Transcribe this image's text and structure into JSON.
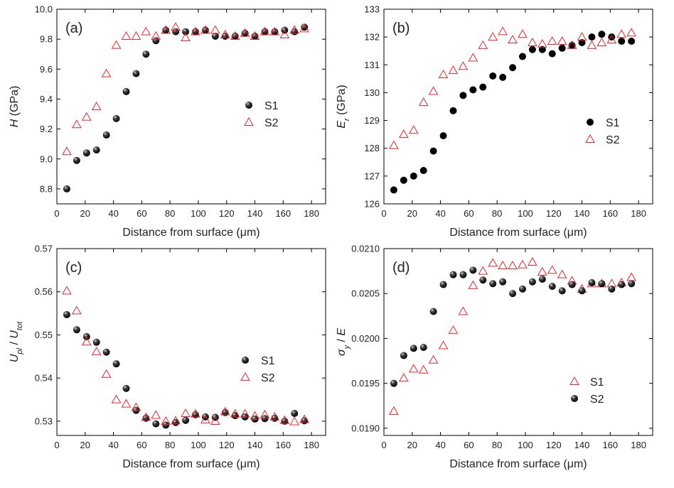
{
  "chart_data": [
    {
      "type": "scatter",
      "label": "(a)",
      "xlabel": "Distance from surface (μm)",
      "ylabel": [
        {
          "text": "H",
          "italic": true
        },
        {
          "text": " (GPa)"
        }
      ],
      "x": [
        7,
        14,
        21,
        28,
        35,
        42,
        49,
        56,
        63,
        70,
        77,
        84,
        91,
        98,
        105,
        112,
        119,
        126,
        133,
        140,
        147,
        154,
        161,
        168,
        175
      ],
      "xlim": [
        0,
        190
      ],
      "xticks": [
        0,
        20,
        40,
        60,
        80,
        100,
        120,
        140,
        160,
        180
      ],
      "ylim": [
        8.7,
        10.0
      ],
      "yticks": [
        8.8,
        {
          "value": 9,
          "label": "9.0"
        },
        9.2,
        9.4,
        9.6,
        9.8,
        {
          "value": 10,
          "label": "10.0"
        }
      ],
      "series": [
        {
          "name": "S1",
          "marker": "sphere",
          "color": "#000000",
          "values": [
            8.8,
            8.99,
            9.04,
            9.06,
            9.16,
            9.27,
            9.45,
            9.57,
            9.7,
            9.79,
            9.86,
            9.85,
            9.85,
            9.85,
            9.86,
            9.82,
            9.82,
            9.82,
            9.84,
            9.82,
            9.85,
            9.85,
            9.86,
            9.85,
            9.88
          ]
        },
        {
          "name": "S2",
          "marker": "triangle",
          "color": "#e8262a",
          "values": [
            9.05,
            9.23,
            9.28,
            9.35,
            9.57,
            9.76,
            9.82,
            9.82,
            9.85,
            9.82,
            9.86,
            9.88,
            9.81,
            9.85,
            9.86,
            9.86,
            9.83,
            9.82,
            9.84,
            9.82,
            9.85,
            9.85,
            9.83,
            9.86,
            9.87
          ]
        }
      ]
    },
    {
      "type": "scatter",
      "label": "(b)",
      "xlabel": "Distance from surface (μm)",
      "ylabel": [
        {
          "text": "E",
          "italic": true
        },
        {
          "text": "r",
          "italic": true,
          "sub": true
        },
        {
          "text": " (GPa)"
        }
      ],
      "x": [
        7,
        14,
        21,
        28,
        35,
        42,
        49,
        56,
        63,
        70,
        77,
        84,
        91,
        98,
        105,
        112,
        119,
        126,
        133,
        140,
        147,
        154,
        161,
        168,
        175
      ],
      "xlim": [
        0,
        190
      ],
      "xticks": [
        0,
        20,
        40,
        60,
        80,
        100,
        120,
        140,
        160,
        180
      ],
      "ylim": [
        126,
        133
      ],
      "yticks": [
        126,
        127,
        128,
        129,
        130,
        131,
        132,
        133
      ],
      "series": [
        {
          "name": "S1",
          "marker": "dot",
          "color": "#000000",
          "values": [
            126.5,
            126.85,
            127.0,
            127.2,
            127.9,
            128.45,
            129.35,
            129.9,
            130.1,
            130.2,
            130.6,
            130.55,
            130.9,
            131.3,
            131.55,
            131.55,
            131.4,
            131.6,
            131.7,
            131.8,
            132.0,
            132.1,
            132.0,
            131.85,
            131.85
          ]
        },
        {
          "name": "S2",
          "marker": "triangle",
          "color": "#e8262a",
          "values": [
            128.1,
            128.5,
            128.65,
            129.65,
            130.05,
            130.65,
            130.8,
            130.95,
            131.25,
            131.7,
            132.0,
            132.2,
            131.9,
            132.1,
            131.8,
            131.75,
            131.85,
            131.85,
            131.7,
            132.0,
            131.7,
            131.8,
            131.9,
            132.1,
            132.15
          ]
        }
      ]
    },
    {
      "type": "scatter",
      "label": "(c)",
      "xlabel": "Distance from surface (μm)",
      "ylabel": [
        {
          "text": "U",
          "italic": true
        },
        {
          "text": "pl",
          "italic": true,
          "sub": true
        },
        {
          "text": " / "
        },
        {
          "text": "U",
          "italic": true
        },
        {
          "text": "tot",
          "italic": true,
          "sub": true
        }
      ],
      "x": [
        7,
        14,
        21,
        28,
        35,
        42,
        49,
        56,
        63,
        70,
        77,
        84,
        91,
        98,
        105,
        112,
        119,
        126,
        133,
        140,
        147,
        154,
        161,
        168,
        175
      ],
      "xlim": [
        0,
        190
      ],
      "xticks": [
        0,
        20,
        40,
        60,
        80,
        100,
        120,
        140,
        160,
        180
      ],
      "ylim": [
        0.5267,
        0.57
      ],
      "yticks": [
        0.53,
        0.54,
        0.55,
        0.56,
        0.57
      ],
      "series": [
        {
          "name": "S1",
          "marker": "sphere",
          "color": "#000000",
          "values": [
            0.5547,
            0.5512,
            0.5496,
            0.5483,
            0.546,
            0.5433,
            0.5376,
            0.5325,
            0.5307,
            0.5294,
            0.5291,
            0.5297,
            0.5302,
            0.5315,
            0.531,
            0.5309,
            0.532,
            0.5313,
            0.531,
            0.5305,
            0.5306,
            0.5307,
            0.53,
            0.5318,
            0.5301
          ]
        },
        {
          "name": "S2",
          "marker": "triangle",
          "color": "#e8262a",
          "values": [
            0.5602,
            0.5556,
            0.5484,
            0.5461,
            0.5409,
            0.535,
            0.534,
            0.5332,
            0.5309,
            0.5314,
            0.53,
            0.5301,
            0.5318,
            0.5317,
            0.5303,
            0.53,
            0.5322,
            0.5317,
            0.5317,
            0.5312,
            0.5315,
            0.531,
            0.5302,
            0.5299,
            0.5304
          ]
        }
      ]
    },
    {
      "type": "scatter",
      "label": "(d)",
      "xlabel": "Distance from surface (μm)",
      "ylabel": [
        {
          "text": "σ",
          "italic": true
        },
        {
          "text": "y",
          "italic": true,
          "sub": true
        },
        {
          "text": " / "
        },
        {
          "text": "E",
          "italic": true
        }
      ],
      "x": [
        7,
        14,
        21,
        28,
        35,
        42,
        49,
        56,
        63,
        70,
        77,
        84,
        91,
        98,
        105,
        112,
        119,
        126,
        133,
        140,
        147,
        154,
        161,
        168,
        175
      ],
      "xlim": [
        0,
        190
      ],
      "xticks": [
        0,
        20,
        40,
        60,
        80,
        100,
        120,
        140,
        160,
        180
      ],
      "ylim": [
        0.01892,
        0.021
      ],
      "yticks": [
        {
          "value": 0.019,
          "label": "0.0190"
        },
        {
          "value": 0.0195,
          "label": "0.0195"
        },
        {
          "value": 0.02,
          "label": "0.0200"
        },
        {
          "value": 0.0205,
          "label": "0.0205"
        },
        {
          "value": 0.021,
          "label": "0.0210"
        }
      ],
      "series": [
        {
          "name": "S1",
          "marker": "triangle",
          "color": "#e8262a",
          "values": [
            0.01919,
            0.01956,
            0.01966,
            0.01965,
            0.01976,
            0.01992,
            0.02009,
            0.0203,
            0.02059,
            0.02075,
            0.02084,
            0.02081,
            0.02081,
            0.02082,
            0.02085,
            0.02074,
            0.02076,
            0.02071,
            0.02064,
            0.02055,
            0.02061,
            0.02061,
            0.02061,
            0.02062,
            0.02068
          ]
        },
        {
          "name": "S2",
          "marker": "sphere",
          "color": "#000000",
          "values": [
            0.0195,
            0.01981,
            0.01989,
            0.0199,
            0.0203,
            0.0206,
            0.02071,
            0.02071,
            0.02076,
            0.02065,
            0.02061,
            0.02063,
            0.0205,
            0.02055,
            0.02063,
            0.02066,
            0.02058,
            0.02053,
            0.0206,
            0.02053,
            0.02062,
            0.02061,
            0.02055,
            0.0206,
            0.02061
          ]
        }
      ]
    }
  ]
}
